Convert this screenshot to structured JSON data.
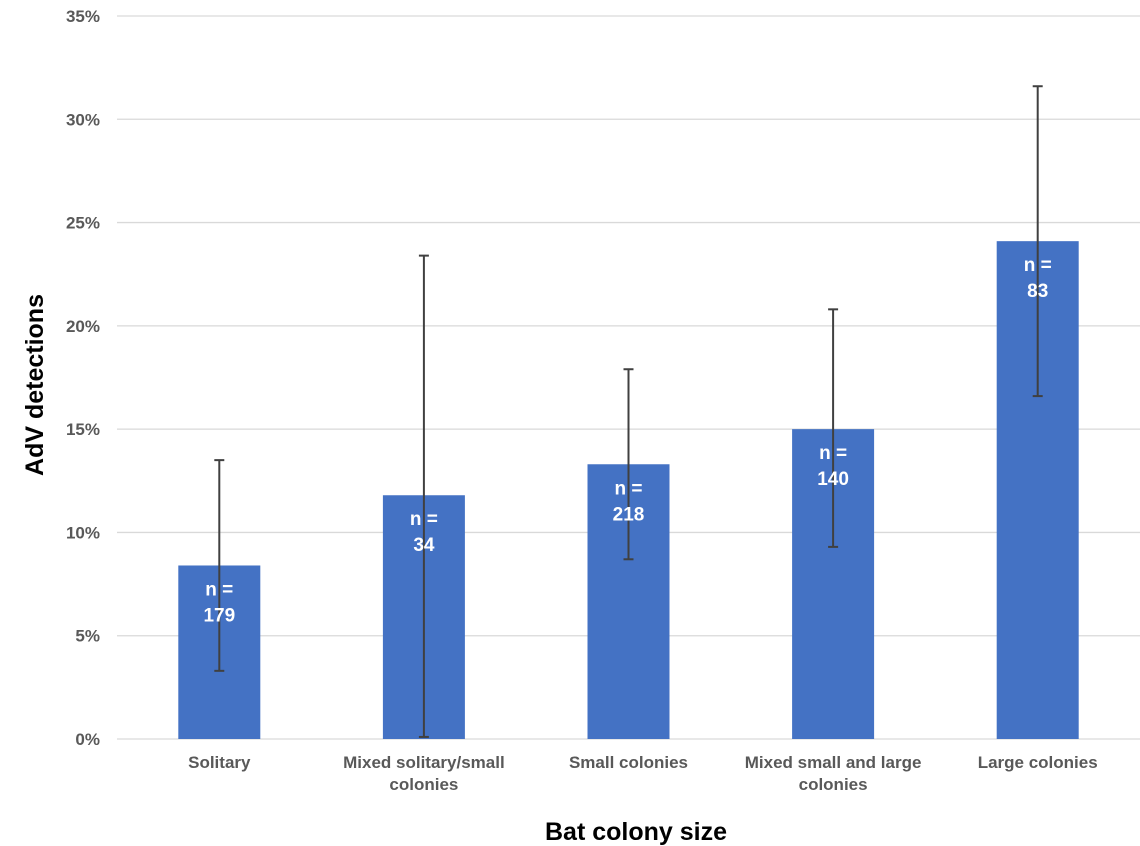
{
  "chart_data": {
    "type": "bar",
    "title": "",
    "xlabel": "Bat colony size",
    "ylabel": "AdV detections",
    "ylim": [
      0,
      35
    ],
    "yticks": [
      0,
      5,
      10,
      15,
      20,
      25,
      30,
      35
    ],
    "ytick_suffix": "%",
    "grid": true,
    "categories": [
      [
        "Solitary"
      ],
      [
        "Mixed solitary/small",
        "colonies"
      ],
      [
        "Small colonies"
      ],
      [
        "Mixed small and large",
        "colonies"
      ],
      [
        "Large colonies"
      ]
    ],
    "values": [
      8.4,
      11.8,
      13.3,
      15.0,
      24.1
    ],
    "error_low": [
      3.3,
      0.1,
      8.7,
      9.3,
      16.6
    ],
    "error_high": [
      13.5,
      23.4,
      17.9,
      20.8,
      31.6
    ],
    "bar_labels": [
      [
        "n =",
        "179"
      ],
      [
        "n =",
        "34"
      ],
      [
        "n =",
        "218"
      ],
      [
        "n =",
        "140"
      ],
      [
        "n =",
        "83"
      ]
    ],
    "colors": {
      "bar": "#4472C4",
      "grid": "#D9D9D9",
      "error": "#404040"
    }
  }
}
